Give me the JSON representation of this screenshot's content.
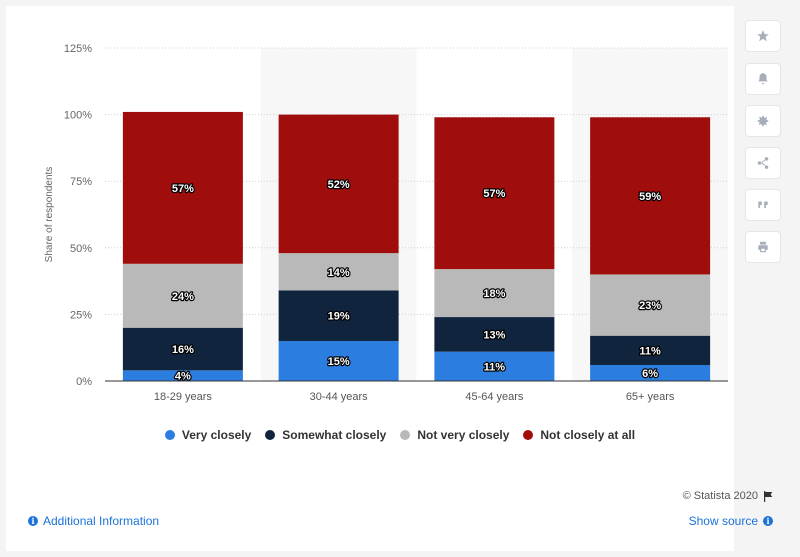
{
  "chart_data": {
    "type": "bar",
    "stacked": true,
    "categories": [
      "18-29 years",
      "30-44 years",
      "45-64 years",
      "65+ years"
    ],
    "series": [
      {
        "name": "Very closely",
        "color": "#2b7de0",
        "values": [
          4,
          15,
          11,
          6
        ],
        "labels": [
          "4%",
          "15%",
          "11%",
          "6%"
        ]
      },
      {
        "name": "Somewhat closely",
        "color": "#10243e",
        "values": [
          16,
          19,
          13,
          11
        ],
        "labels": [
          "16%",
          "19%",
          "13%",
          "11%"
        ]
      },
      {
        "name": "Not very closely",
        "color": "#b9b9b9",
        "values": [
          24,
          14,
          18,
          23
        ],
        "labels": [
          "24%",
          "14%",
          "18%",
          "23%"
        ]
      },
      {
        "name": "Not closely at all",
        "color": "#a00d0d",
        "values": [
          57,
          52,
          57,
          59
        ],
        "labels": [
          "57%",
          "52%",
          "57%",
          "59%"
        ]
      }
    ],
    "ylabel": "Share of respondents",
    "ylim": [
      0,
      125
    ],
    "yticks": [
      0,
      25,
      50,
      75,
      100,
      125
    ],
    "ytick_labels": [
      "0%",
      "25%",
      "50%",
      "75%",
      "100%",
      "125%"
    ],
    "grid": true,
    "legend_position": "bottom"
  },
  "toolbar": {
    "icons": [
      "star-icon",
      "bell-icon",
      "gear-icon",
      "share-icon",
      "quote-icon",
      "print-icon"
    ]
  },
  "footer": {
    "copyright": "© Statista 2020",
    "additional_info": "Additional Information",
    "show_source": "Show source"
  }
}
